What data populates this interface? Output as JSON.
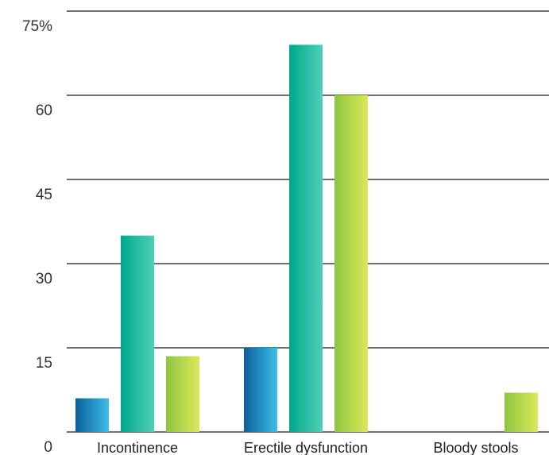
{
  "chart_data": {
    "type": "bar",
    "categories": [
      "Incontinence",
      "Erectile dysfunction",
      "Bloody stools"
    ],
    "series": [
      {
        "values": [
          6,
          15,
          0
        ],
        "color_from": "#0b5f9c",
        "color_to": "#3dbde8"
      },
      {
        "values": [
          35,
          69,
          0
        ],
        "color_from": "#00a88c",
        "color_to": "#4fcfb7"
      },
      {
        "values": [
          13.5,
          60,
          7
        ],
        "color_from": "#8ec63f",
        "color_to": "#dbe85a"
      }
    ],
    "y_ticks": [
      "0",
      "15",
      "30",
      "45",
      "60",
      "75%"
    ],
    "ylim": [
      0,
      75
    ],
    "grid": true,
    "legend": "none"
  }
}
